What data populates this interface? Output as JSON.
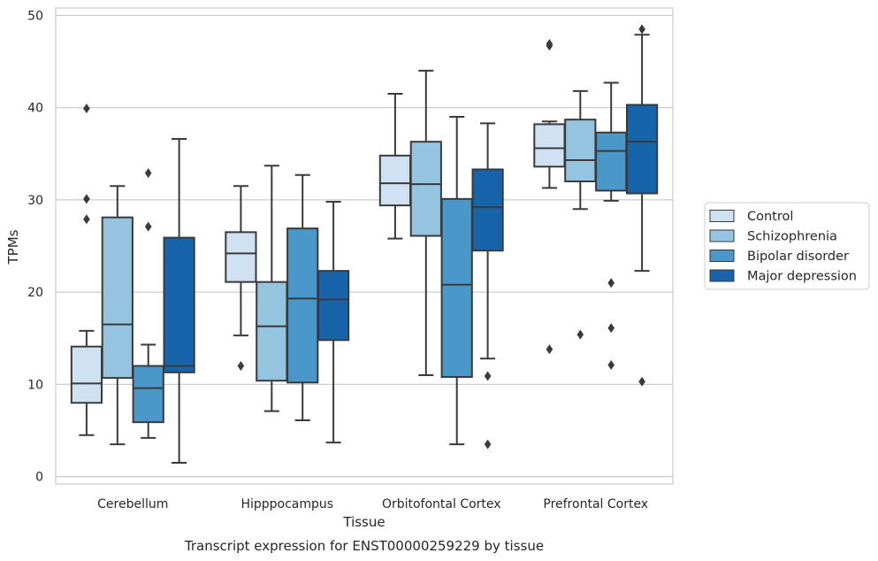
{
  "chart_data": {
    "type": "box",
    "title": "",
    "caption": "Transcript expression for ENST00000259229 by tissue",
    "xlabel": "Tissue",
    "ylabel": "TPMs",
    "ylim": [
      -0.8,
      50.8
    ],
    "yticks": [
      0,
      10,
      20,
      30,
      40,
      50
    ],
    "grid": true,
    "legend_position": "right",
    "categories": [
      "Cerebellum",
      "Hipppocampus",
      "Orbitofontal Cortex",
      "Prefrontal Cortex"
    ],
    "series": [
      {
        "name": "Control",
        "color": "#d0e1f2",
        "boxes": [
          {
            "whisker_low": 4.5,
            "q1": 8.0,
            "median": 10.1,
            "q3": 14.1,
            "whisker_high": 15.8,
            "outliers": [
              27.9,
              30.1,
              39.9
            ]
          },
          {
            "whisker_low": 15.3,
            "q1": 21.1,
            "median": 24.2,
            "q3": 26.5,
            "whisker_high": 31.5,
            "outliers": [
              12.0
            ]
          },
          {
            "whisker_low": 25.8,
            "q1": 29.4,
            "median": 31.8,
            "q3": 34.8,
            "whisker_high": 41.5,
            "outliers": []
          },
          {
            "whisker_low": 31.3,
            "q1": 33.6,
            "median": 35.6,
            "q3": 38.2,
            "whisker_high": 38.5,
            "outliers": [
              13.8,
              46.7,
              46.9
            ]
          }
        ]
      },
      {
        "name": "Schizophrenia",
        "color": "#94c4df",
        "boxes": [
          {
            "whisker_low": 3.5,
            "q1": 10.7,
            "median": 16.5,
            "q3": 28.1,
            "whisker_high": 31.5,
            "outliers": []
          },
          {
            "whisker_low": 7.1,
            "q1": 10.4,
            "median": 16.3,
            "q3": 21.1,
            "whisker_high": 33.7,
            "outliers": []
          },
          {
            "whisker_low": 11.0,
            "q1": 26.1,
            "median": 31.7,
            "q3": 36.3,
            "whisker_high": 44.0,
            "outliers": []
          },
          {
            "whisker_low": 29.0,
            "q1": 32.0,
            "median": 34.3,
            "q3": 38.7,
            "whisker_high": 41.8,
            "outliers": [
              15.4
            ]
          }
        ]
      },
      {
        "name": "Bipolar disorder",
        "color": "#4a98c9",
        "boxes": [
          {
            "whisker_low": 4.2,
            "q1": 5.9,
            "median": 9.6,
            "q3": 12.0,
            "whisker_high": 14.3,
            "outliers": [
              27.1,
              32.9
            ]
          },
          {
            "whisker_low": 6.1,
            "q1": 10.2,
            "median": 19.3,
            "q3": 26.9,
            "whisker_high": 32.7,
            "outliers": []
          },
          {
            "whisker_low": 3.5,
            "q1": 10.8,
            "median": 20.8,
            "q3": 30.1,
            "whisker_high": 39.0,
            "outliers": []
          },
          {
            "whisker_low": 29.9,
            "q1": 31.0,
            "median": 35.3,
            "q3": 37.3,
            "whisker_high": 42.7,
            "outliers": [
              12.1,
              16.1,
              21.0
            ]
          }
        ]
      },
      {
        "name": "Major depression",
        "color": "#1764ab",
        "boxes": [
          {
            "whisker_low": 1.5,
            "q1": 11.3,
            "median": 12.0,
            "q3": 25.9,
            "whisker_high": 36.6,
            "outliers": []
          },
          {
            "whisker_low": 3.7,
            "q1": 14.8,
            "median": 19.2,
            "q3": 22.3,
            "whisker_high": 29.8,
            "outliers": []
          },
          {
            "whisker_low": 12.8,
            "q1": 24.5,
            "median": 29.2,
            "q3": 33.3,
            "whisker_high": 38.3,
            "outliers": [
              3.5,
              10.9
            ]
          },
          {
            "whisker_low": 22.3,
            "q1": 30.7,
            "median": 36.3,
            "q3": 40.3,
            "whisker_high": 47.9,
            "outliers": [
              10.3,
              48.5
            ]
          }
        ]
      }
    ]
  }
}
